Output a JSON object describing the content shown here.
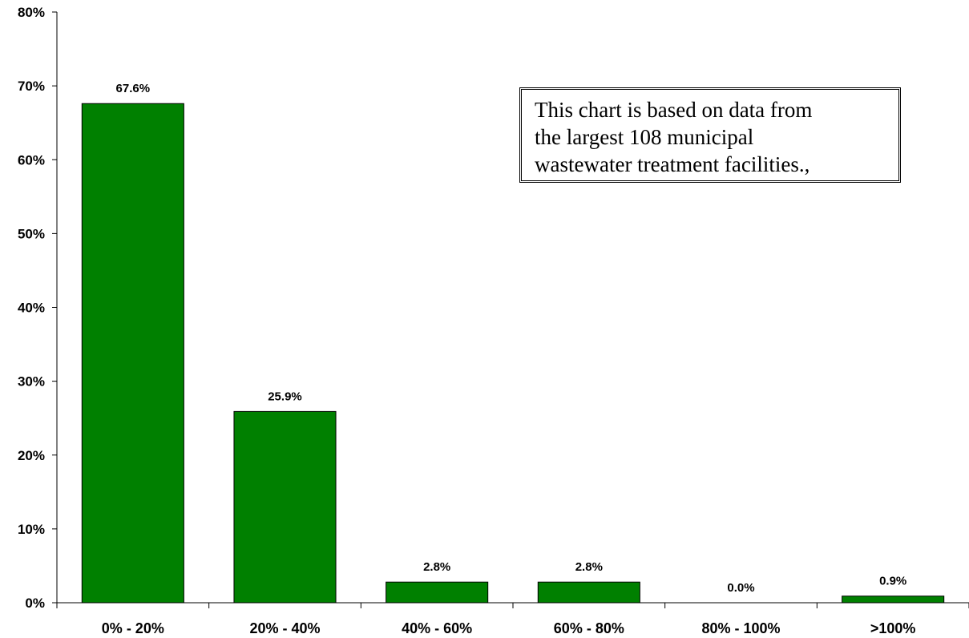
{
  "chart_data": {
    "type": "bar",
    "categories": [
      "0% - 20%",
      "20% - 40%",
      "40% - 60%",
      "60% - 80%",
      "80% - 100%",
      ">100%"
    ],
    "values": [
      67.6,
      25.9,
      2.8,
      2.8,
      0.0,
      0.9
    ],
    "data_labels": [
      "67.6%",
      "25.9%",
      "2.8%",
      "2.8%",
      "0.0%",
      "0.9%"
    ],
    "ylim": [
      0,
      80
    ],
    "yticks": [
      0,
      10,
      20,
      30,
      40,
      50,
      60,
      70,
      80
    ],
    "ytick_labels": [
      "0%",
      "10%",
      "20%",
      "30%",
      "40%",
      "50%",
      "60%",
      "70%",
      "80%"
    ],
    "bar_color": "#008000",
    "grid": false,
    "title": "",
    "xlabel": "",
    "ylabel": ""
  },
  "annotation": {
    "text": "This chart is based on data from\nthe largest 108 municipal\nwastewater treatment facilities.,"
  }
}
